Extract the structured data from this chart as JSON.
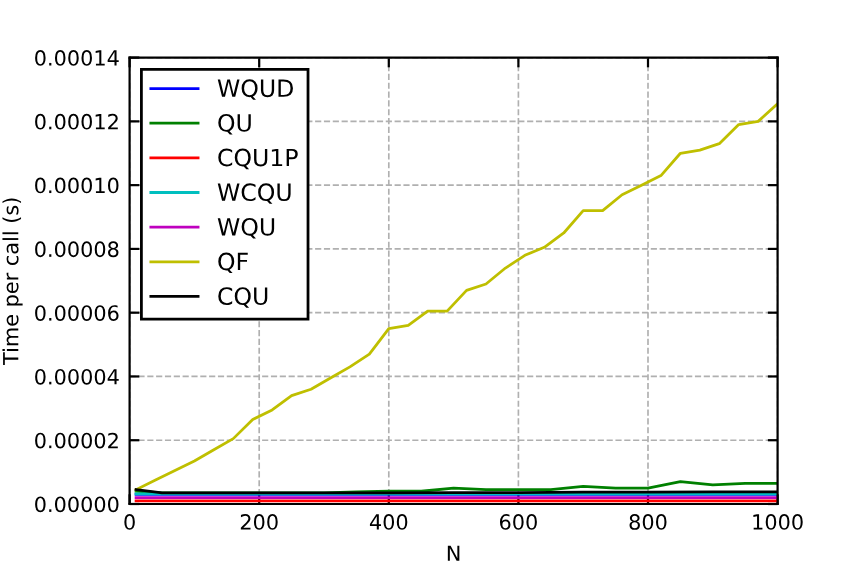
{
  "chart_data": {
    "type": "line",
    "xlabel": "N",
    "ylabel": "Time per call (s)",
    "xlim": [
      0,
      1000
    ],
    "ylim": [
      0,
      0.00014
    ],
    "xticks": [
      0,
      200,
      400,
      600,
      800,
      1000
    ],
    "yticks": [
      {
        "value": 0,
        "label": "0.00000"
      },
      {
        "value": 2e-05,
        "label": "0.00002"
      },
      {
        "value": 4e-05,
        "label": "0.00004"
      },
      {
        "value": 6e-05,
        "label": "0.00006"
      },
      {
        "value": 8e-05,
        "label": "0.00008"
      },
      {
        "value": 0.0001,
        "label": "0.00010"
      },
      {
        "value": 0.00012,
        "label": "0.00012"
      },
      {
        "value": 0.00014,
        "label": "0.00014"
      }
    ],
    "grid": true,
    "legend": "top left",
    "line_style": "solid",
    "marker": "none",
    "series": [
      {
        "name": "WQUD",
        "color": "#0000ff",
        "x": [
          10,
          100,
          200,
          300,
          400,
          500,
          600,
          700,
          800,
          900,
          1000
        ],
        "values": [
          3e-06,
          3e-06,
          3e-06,
          3e-06,
          3e-06,
          3e-06,
          3e-06,
          3e-06,
          3e-06,
          3e-06,
          3e-06
        ]
      },
      {
        "name": "QU",
        "color": "#008000",
        "x": [
          10,
          50,
          100,
          150,
          200,
          250,
          300,
          350,
          400,
          450,
          500,
          550,
          600,
          650,
          700,
          750,
          800,
          850,
          900,
          950,
          1000
        ],
        "values": [
          4e-06,
          3.5e-06,
          3.5e-06,
          3.5e-06,
          3.5e-06,
          3.5e-06,
          3.5e-06,
          3.8e-06,
          4e-06,
          4e-06,
          5e-06,
          4.5e-06,
          4.5e-06,
          4.5e-06,
          5.5e-06,
          5e-06,
          5e-06,
          7e-06,
          6e-06,
          6.5e-06,
          6.5e-06
        ]
      },
      {
        "name": "CQU1P",
        "color": "#ff0000",
        "x": [
          10,
          100,
          200,
          300,
          400,
          500,
          600,
          700,
          800,
          900,
          1000
        ],
        "values": [
          1e-06,
          1e-06,
          1e-06,
          1e-06,
          1e-06,
          1e-06,
          1e-06,
          1e-06,
          1e-06,
          1e-06,
          1e-06
        ]
      },
      {
        "name": "WCQU",
        "color": "#00bfbf",
        "x": [
          10,
          100,
          200,
          300,
          400,
          500,
          600,
          700,
          800,
          900,
          1000
        ],
        "values": [
          3.2e-06,
          3.2e-06,
          3.2e-06,
          3.2e-06,
          3.2e-06,
          3.2e-06,
          3.2e-06,
          3.2e-06,
          3.2e-06,
          3.2e-06,
          3.2e-06
        ]
      },
      {
        "name": "WQU",
        "color": "#bf00bf",
        "x": [
          10,
          100,
          200,
          300,
          400,
          500,
          600,
          700,
          800,
          900,
          1000
        ],
        "values": [
          2e-06,
          2e-06,
          2e-06,
          2e-06,
          2e-06,
          2e-06,
          2e-06,
          2e-06,
          2e-06,
          2e-06,
          2e-06
        ]
      },
      {
        "name": "QF",
        "color": "#bfbf00",
        "x": [
          10,
          40,
          70,
          100,
          130,
          160,
          190,
          220,
          250,
          280,
          310,
          340,
          370,
          400,
          430,
          460,
          490,
          520,
          550,
          580,
          610,
          640,
          670,
          700,
          730,
          760,
          790,
          820,
          850,
          880,
          910,
          940,
          970,
          1000
        ],
        "values": [
          4.5e-06,
          7.5e-06,
          1.05e-05,
          1.35e-05,
          1.7e-05,
          2.05e-05,
          2.65e-05,
          2.95e-05,
          3.4e-05,
          3.6e-05,
          3.95e-05,
          4.3e-05,
          4.7e-05,
          5.5e-05,
          5.6e-05,
          6.05e-05,
          6.05e-05,
          6.7e-05,
          6.9e-05,
          7.4e-05,
          7.8e-05,
          8.05e-05,
          8.5e-05,
          9.2e-05,
          9.2e-05,
          9.7e-05,
          0.0001,
          0.000103,
          0.00011,
          0.000111,
          0.000113,
          0.000119,
          0.00012,
          0.0001255
        ]
      },
      {
        "name": "CQU",
        "color": "#000000",
        "x": [
          10,
          50,
          100,
          200,
          300,
          400,
          500,
          600,
          700,
          800,
          900,
          1000
        ],
        "values": [
          4.5e-06,
          3.5e-06,
          3.5e-06,
          3.5e-06,
          3.5e-06,
          3.5e-06,
          3.6e-06,
          3.6e-06,
          3.7e-06,
          3.7e-06,
          3.8e-06,
          3.8e-06
        ]
      }
    ]
  }
}
